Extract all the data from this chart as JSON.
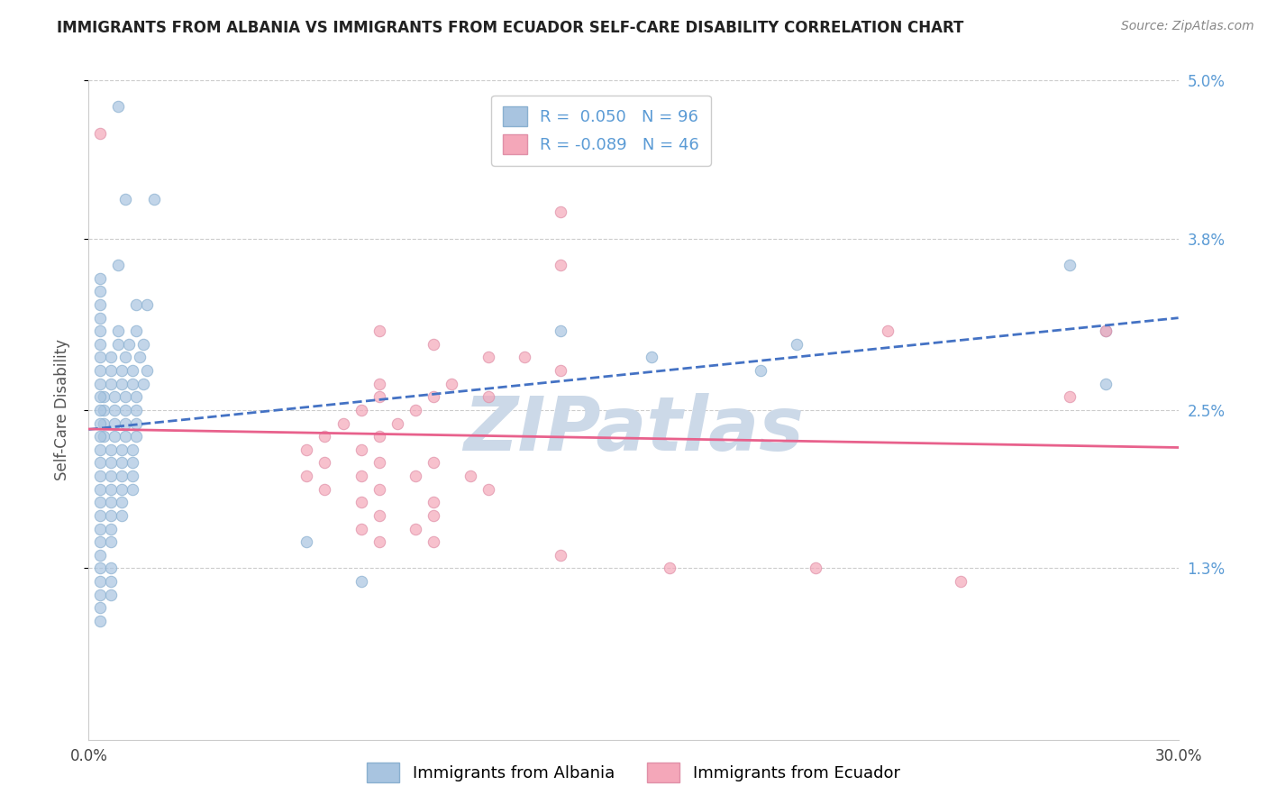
{
  "title": "IMMIGRANTS FROM ALBANIA VS IMMIGRANTS FROM ECUADOR SELF-CARE DISABILITY CORRELATION CHART",
  "source": "Source: ZipAtlas.com",
  "ylabel": "Self-Care Disability",
  "xmin": 0.0,
  "xmax": 0.3,
  "ymin": 0.0,
  "ymax": 0.05,
  "yticks": [
    0.013,
    0.025,
    0.038,
    0.05
  ],
  "ytick_labels": [
    "1.3%",
    "2.5%",
    "3.8%",
    "5.0%"
  ],
  "xticks": [
    0.0,
    0.05,
    0.1,
    0.15,
    0.2,
    0.25,
    0.3
  ],
  "xtick_labels": [
    "0.0%",
    "",
    "",
    "",
    "",
    "",
    "30.0%"
  ],
  "albania_R": 0.05,
  "albania_N": 96,
  "ecuador_R": -0.089,
  "ecuador_N": 46,
  "albania_color": "#a8c4e0",
  "ecuador_color": "#f4a7b9",
  "albania_line_color": "#4472c4",
  "ecuador_line_color": "#e8618c",
  "albania_scatter": [
    [
      0.008,
      0.048
    ],
    [
      0.01,
      0.041
    ],
    [
      0.018,
      0.041
    ],
    [
      0.008,
      0.036
    ],
    [
      0.013,
      0.033
    ],
    [
      0.016,
      0.033
    ],
    [
      0.008,
      0.031
    ],
    [
      0.013,
      0.031
    ],
    [
      0.008,
      0.03
    ],
    [
      0.011,
      0.03
    ],
    [
      0.015,
      0.03
    ],
    [
      0.006,
      0.029
    ],
    [
      0.01,
      0.029
    ],
    [
      0.014,
      0.029
    ],
    [
      0.006,
      0.028
    ],
    [
      0.009,
      0.028
    ],
    [
      0.012,
      0.028
    ],
    [
      0.016,
      0.028
    ],
    [
      0.006,
      0.027
    ],
    [
      0.009,
      0.027
    ],
    [
      0.012,
      0.027
    ],
    [
      0.015,
      0.027
    ],
    [
      0.004,
      0.026
    ],
    [
      0.007,
      0.026
    ],
    [
      0.01,
      0.026
    ],
    [
      0.013,
      0.026
    ],
    [
      0.004,
      0.025
    ],
    [
      0.007,
      0.025
    ],
    [
      0.01,
      0.025
    ],
    [
      0.013,
      0.025
    ],
    [
      0.004,
      0.024
    ],
    [
      0.007,
      0.024
    ],
    [
      0.01,
      0.024
    ],
    [
      0.013,
      0.024
    ],
    [
      0.004,
      0.023
    ],
    [
      0.007,
      0.023
    ],
    [
      0.01,
      0.023
    ],
    [
      0.013,
      0.023
    ],
    [
      0.003,
      0.022
    ],
    [
      0.006,
      0.022
    ],
    [
      0.009,
      0.022
    ],
    [
      0.012,
      0.022
    ],
    [
      0.003,
      0.021
    ],
    [
      0.006,
      0.021
    ],
    [
      0.009,
      0.021
    ],
    [
      0.012,
      0.021
    ],
    [
      0.003,
      0.02
    ],
    [
      0.006,
      0.02
    ],
    [
      0.009,
      0.02
    ],
    [
      0.012,
      0.02
    ],
    [
      0.003,
      0.019
    ],
    [
      0.006,
      0.019
    ],
    [
      0.009,
      0.019
    ],
    [
      0.012,
      0.019
    ],
    [
      0.003,
      0.018
    ],
    [
      0.006,
      0.018
    ],
    [
      0.009,
      0.018
    ],
    [
      0.003,
      0.017
    ],
    [
      0.006,
      0.017
    ],
    [
      0.009,
      0.017
    ],
    [
      0.003,
      0.016
    ],
    [
      0.006,
      0.016
    ],
    [
      0.003,
      0.015
    ],
    [
      0.006,
      0.015
    ],
    [
      0.003,
      0.014
    ],
    [
      0.003,
      0.013
    ],
    [
      0.006,
      0.013
    ],
    [
      0.003,
      0.012
    ],
    [
      0.006,
      0.012
    ],
    [
      0.003,
      0.011
    ],
    [
      0.006,
      0.011
    ],
    [
      0.003,
      0.01
    ],
    [
      0.003,
      0.009
    ],
    [
      0.06,
      0.015
    ],
    [
      0.075,
      0.012
    ],
    [
      0.13,
      0.031
    ],
    [
      0.155,
      0.029
    ],
    [
      0.185,
      0.028
    ],
    [
      0.195,
      0.03
    ],
    [
      0.27,
      0.036
    ],
    [
      0.28,
      0.031
    ],
    [
      0.28,
      0.027
    ],
    [
      0.003,
      0.035
    ],
    [
      0.003,
      0.034
    ],
    [
      0.003,
      0.033
    ],
    [
      0.003,
      0.032
    ],
    [
      0.003,
      0.031
    ],
    [
      0.003,
      0.03
    ],
    [
      0.003,
      0.029
    ],
    [
      0.003,
      0.028
    ],
    [
      0.003,
      0.027
    ],
    [
      0.003,
      0.026
    ],
    [
      0.003,
      0.025
    ],
    [
      0.003,
      0.024
    ],
    [
      0.003,
      0.023
    ]
  ],
  "ecuador_scatter": [
    [
      0.003,
      0.046
    ],
    [
      0.13,
      0.04
    ],
    [
      0.13,
      0.036
    ],
    [
      0.08,
      0.031
    ],
    [
      0.095,
      0.03
    ],
    [
      0.11,
      0.029
    ],
    [
      0.12,
      0.029
    ],
    [
      0.13,
      0.028
    ],
    [
      0.08,
      0.027
    ],
    [
      0.1,
      0.027
    ],
    [
      0.08,
      0.026
    ],
    [
      0.095,
      0.026
    ],
    [
      0.11,
      0.026
    ],
    [
      0.075,
      0.025
    ],
    [
      0.09,
      0.025
    ],
    [
      0.07,
      0.024
    ],
    [
      0.085,
      0.024
    ],
    [
      0.065,
      0.023
    ],
    [
      0.08,
      0.023
    ],
    [
      0.06,
      0.022
    ],
    [
      0.075,
      0.022
    ],
    [
      0.065,
      0.021
    ],
    [
      0.08,
      0.021
    ],
    [
      0.095,
      0.021
    ],
    [
      0.06,
      0.02
    ],
    [
      0.075,
      0.02
    ],
    [
      0.09,
      0.02
    ],
    [
      0.105,
      0.02
    ],
    [
      0.065,
      0.019
    ],
    [
      0.08,
      0.019
    ],
    [
      0.11,
      0.019
    ],
    [
      0.075,
      0.018
    ],
    [
      0.095,
      0.018
    ],
    [
      0.08,
      0.017
    ],
    [
      0.095,
      0.017
    ],
    [
      0.075,
      0.016
    ],
    [
      0.09,
      0.016
    ],
    [
      0.08,
      0.015
    ],
    [
      0.095,
      0.015
    ],
    [
      0.13,
      0.014
    ],
    [
      0.16,
      0.013
    ],
    [
      0.2,
      0.013
    ],
    [
      0.24,
      0.012
    ],
    [
      0.22,
      0.031
    ],
    [
      0.28,
      0.031
    ],
    [
      0.27,
      0.026
    ]
  ],
  "watermark": "ZIPatlas",
  "watermark_color": "#ccd9e8",
  "background_color": "#ffffff",
  "grid_color": "#cccccc",
  "title_fontsize": 12,
  "axis_fontsize": 12,
  "tick_fontsize": 12
}
